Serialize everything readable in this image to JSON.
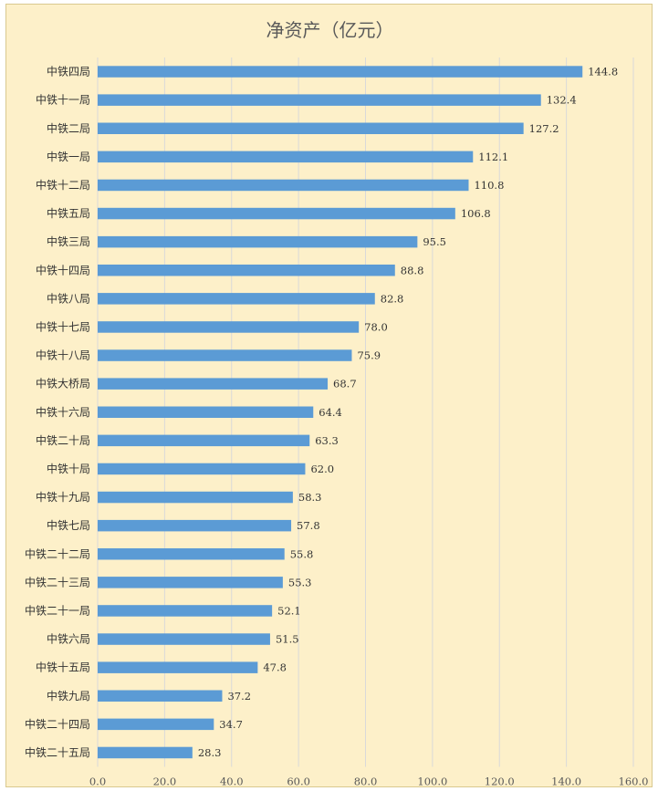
{
  "chart_data": {
    "type": "bar",
    "orientation": "horizontal",
    "title": "净资产（亿元）",
    "categories": [
      "中铁四局",
      "中铁十一局",
      "中铁二局",
      "中铁一局",
      "中铁十二局",
      "中铁五局",
      "中铁三局",
      "中铁十四局",
      "中铁八局",
      "中铁十七局",
      "中铁十八局",
      "中铁大桥局",
      "中铁十六局",
      "中铁二十局",
      "中铁十局",
      "中铁十九局",
      "中铁七局",
      "中铁二十二局",
      "中铁二十三局",
      "中铁二十一局",
      "中铁六局",
      "中铁十五局",
      "中铁九局",
      "中铁二十四局",
      "中铁二十五局"
    ],
    "values": [
      144.8,
      132.4,
      127.2,
      112.1,
      110.8,
      106.8,
      95.5,
      88.8,
      82.8,
      78.0,
      75.9,
      68.7,
      64.4,
      63.3,
      62.0,
      58.3,
      57.8,
      55.8,
      55.3,
      52.1,
      51.5,
      47.8,
      37.2,
      34.7,
      28.3
    ],
    "value_labels": [
      "144.8",
      "132.4",
      "127.2",
      "112.1",
      "110.8",
      "106.8",
      "95.5",
      "88.8",
      "82.8",
      "78.0",
      "75.9",
      "68.7",
      "64.4",
      "63.3",
      "62.0",
      "58.3",
      "57.8",
      "55.8",
      "55.3",
      "52.1",
      "51.5",
      "47.8",
      "37.2",
      "34.7",
      "28.3"
    ],
    "xlim": [
      0,
      160
    ],
    "x_ticks": [
      "0.0",
      "20.0",
      "40.0",
      "60.0",
      "80.0",
      "100.0",
      "120.0",
      "140.0",
      "160.0"
    ],
    "grid": true,
    "legend": "none",
    "bar_color": "#5b9bd5",
    "grid_color": "#d9d9d9",
    "background_color": "#fdf0c9"
  }
}
